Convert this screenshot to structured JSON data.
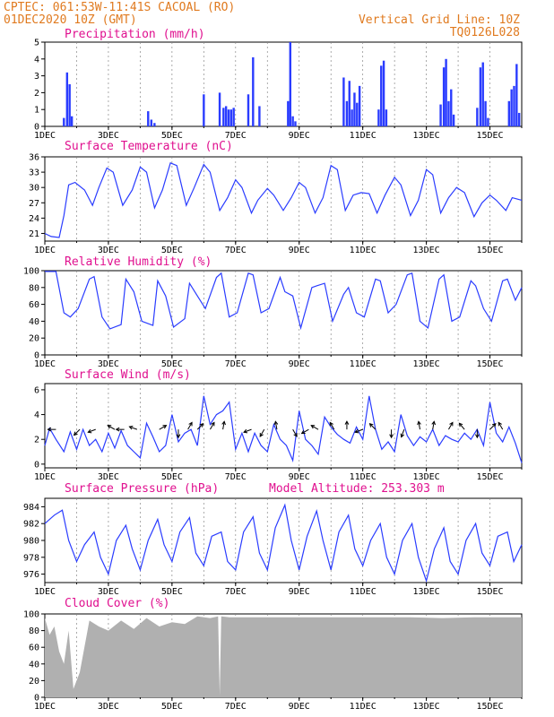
{
  "header": {
    "line1": "CPTEC:  061:53W-11:41S  CACOAL (RO)",
    "line2": "01DEC2020 10Z (GMT)",
    "grid_note": "Vertical Grid Line: 10Z",
    "model": "TQ0126L028"
  },
  "colors": {
    "header": "#e07a1f",
    "title": "#e0108f",
    "series": "#2a3cff",
    "cloud": "#b0b0b0"
  },
  "x_axis": {
    "day_range": [
      1,
      16
    ],
    "tick_days": [
      1,
      3,
      5,
      7,
      9,
      11,
      13,
      15
    ],
    "tick_labels": [
      "1DEC",
      "3DEC",
      "5DEC",
      "7DEC",
      "9DEC",
      "11DEC",
      "13DEC",
      "15DEC"
    ]
  },
  "chart_data": [
    {
      "id": "precip",
      "type": "bar",
      "title": "Precipitation (mm/h)",
      "ylim": [
        0,
        5
      ],
      "yticks": [
        0,
        1,
        2,
        3,
        4,
        5
      ],
      "x_day": [
        1.6,
        1.7,
        1.78,
        1.85,
        4.25,
        4.35,
        4.45,
        6.0,
        6.5,
        6.62,
        6.7,
        6.78,
        6.86,
        6.94,
        7.4,
        7.55,
        7.75,
        8.65,
        8.72,
        8.8,
        8.88,
        10.4,
        10.5,
        10.58,
        10.66,
        10.74,
        10.82,
        10.9,
        11.5,
        11.58,
        11.66,
        11.74,
        13.45,
        13.55,
        13.62,
        13.7,
        13.78,
        13.86,
        14.6,
        14.7,
        14.78,
        14.86,
        14.94,
        15.6,
        15.68,
        15.76,
        15.84,
        15.92
      ],
      "values": [
        0.5,
        3.2,
        2.5,
        0.6,
        0.9,
        0.4,
        0.2,
        1.9,
        2.0,
        1.1,
        1.2,
        1.0,
        1.0,
        1.1,
        1.9,
        4.1,
        1.2,
        1.5,
        5.0,
        0.6,
        0.3,
        2.9,
        1.5,
        2.7,
        1.0,
        2.0,
        1.4,
        2.4,
        1.0,
        3.6,
        3.9,
        1.0,
        1.3,
        3.5,
        4.0,
        1.5,
        2.2,
        0.7,
        1.1,
        3.5,
        3.8,
        1.5,
        0.5,
        1.5,
        2.2,
        2.4,
        3.7,
        0.8
      ]
    },
    {
      "id": "temp",
      "type": "line",
      "title": "Surface Temperature (nC)",
      "ylim": [
        19.5,
        36
      ],
      "yticks": [
        21,
        24,
        27,
        30,
        33,
        36
      ],
      "x_day": [
        1.0,
        1.2,
        1.45,
        1.6,
        1.75,
        1.95,
        2.25,
        2.5,
        2.7,
        2.95,
        3.15,
        3.45,
        3.75,
        4.0,
        4.2,
        4.45,
        4.7,
        4.95,
        5.15,
        5.45,
        5.7,
        6.0,
        6.2,
        6.5,
        6.75,
        7.0,
        7.2,
        7.5,
        7.7,
        8.0,
        8.2,
        8.5,
        8.75,
        9.0,
        9.2,
        9.5,
        9.75,
        10.0,
        10.2,
        10.45,
        10.7,
        10.95,
        11.2,
        11.45,
        11.7,
        12.0,
        12.2,
        12.5,
        12.75,
        13.0,
        13.2,
        13.45,
        13.7,
        13.95,
        14.2,
        14.5,
        14.75,
        15.0,
        15.2,
        15.5,
        15.7,
        16.0
      ],
      "values": [
        21.0,
        20.4,
        20.2,
        24.5,
        30.5,
        31.0,
        29.5,
        26.5,
        30.0,
        33.8,
        33.0,
        26.5,
        29.5,
        34.0,
        33.0,
        26.0,
        29.5,
        34.8,
        34.3,
        26.5,
        30.0,
        34.5,
        33.0,
        25.5,
        28.0,
        31.5,
        30.0,
        25.0,
        27.5,
        29.8,
        28.5,
        25.5,
        28.0,
        31.0,
        30.0,
        25.0,
        28.0,
        34.3,
        33.5,
        25.5,
        28.5,
        29.0,
        28.8,
        25.0,
        28.5,
        32.0,
        30.5,
        24.5,
        27.5,
        33.5,
        32.5,
        25.0,
        28.0,
        30.0,
        29.0,
        24.3,
        27.0,
        28.5,
        27.5,
        25.5,
        28.0,
        27.5
      ]
    },
    {
      "id": "rh",
      "type": "line",
      "title": "Relative Humidity (%)",
      "ylim": [
        0,
        100
      ],
      "yticks": [
        0,
        20,
        40,
        60,
        80,
        100
      ],
      "x_day": [
        1.0,
        1.35,
        1.6,
        1.8,
        2.05,
        2.4,
        2.55,
        2.8,
        3.05,
        3.4,
        3.55,
        3.8,
        4.05,
        4.4,
        4.55,
        4.8,
        5.05,
        5.4,
        5.55,
        5.8,
        6.05,
        6.4,
        6.55,
        6.8,
        7.05,
        7.4,
        7.55,
        7.8,
        8.05,
        8.4,
        8.55,
        8.8,
        9.05,
        9.4,
        9.55,
        9.8,
        10.05,
        10.4,
        10.55,
        10.8,
        11.05,
        11.4,
        11.55,
        11.8,
        12.05,
        12.4,
        12.55,
        12.8,
        13.05,
        13.4,
        13.55,
        13.8,
        14.05,
        14.4,
        14.55,
        14.8,
        15.05,
        15.4,
        15.55,
        15.8,
        16.0
      ],
      "values": [
        99.0,
        99.0,
        50.0,
        45.0,
        55.0,
        90.0,
        93.0,
        45.0,
        31.0,
        36.0,
        90.0,
        75.0,
        40.0,
        35.0,
        88.0,
        70.0,
        33.0,
        43.0,
        85.0,
        70.0,
        55.0,
        92.0,
        97.0,
        45.0,
        50.0,
        97.0,
        95.0,
        50.0,
        55.0,
        92.0,
        75.0,
        70.0,
        32.0,
        80.0,
        82.0,
        85.0,
        40.0,
        72.0,
        80.0,
        50.0,
        45.0,
        90.0,
        88.0,
        50.0,
        60.0,
        95.0,
        97.0,
        40.0,
        32.0,
        90.0,
        95.0,
        40.0,
        45.0,
        88.0,
        82.0,
        55.0,
        40.0,
        88.0,
        90.0,
        65.0,
        80.0
      ]
    },
    {
      "id": "wind",
      "type": "line",
      "title": "Surface Wind (m/s)",
      "ylim": [
        -0.3,
        6.5
      ],
      "yticks": [
        0,
        2,
        4,
        6
      ],
      "x_day": [
        1.0,
        1.15,
        1.35,
        1.6,
        1.8,
        2.0,
        2.2,
        2.4,
        2.6,
        2.8,
        3.0,
        3.2,
        3.4,
        3.6,
        3.8,
        4.0,
        4.2,
        4.4,
        4.6,
        4.8,
        5.0,
        5.2,
        5.4,
        5.6,
        5.8,
        6.0,
        6.2,
        6.4,
        6.6,
        6.8,
        7.0,
        7.2,
        7.4,
        7.6,
        7.8,
        8.0,
        8.2,
        8.4,
        8.6,
        8.8,
        9.0,
        9.2,
        9.4,
        9.6,
        9.8,
        10.0,
        10.2,
        10.4,
        10.6,
        10.8,
        11.0,
        11.2,
        11.4,
        11.6,
        11.8,
        12.0,
        12.2,
        12.4,
        12.6,
        12.8,
        13.0,
        13.2,
        13.4,
        13.6,
        13.8,
        14.0,
        14.2,
        14.4,
        14.6,
        14.8,
        15.0,
        15.2,
        15.4,
        15.6,
        15.8,
        16.0
      ],
      "values": [
        1.5,
        2.9,
        2.0,
        1.0,
        2.6,
        1.2,
        2.8,
        1.5,
        2.0,
        1.0,
        2.5,
        1.3,
        2.7,
        1.5,
        1.0,
        0.5,
        3.3,
        2.2,
        1.0,
        1.5,
        4.0,
        1.8,
        2.5,
        2.8,
        1.5,
        5.5,
        3.2,
        4.0,
        4.3,
        5.0,
        1.2,
        2.5,
        1.0,
        2.5,
        1.5,
        1.0,
        3.2,
        2.0,
        1.5,
        0.3,
        4.3,
        2.0,
        1.5,
        0.8,
        3.8,
        3.0,
        2.4,
        2.0,
        1.7,
        3.0,
        2.0,
        5.5,
        2.8,
        1.2,
        1.8,
        1.0,
        4.0,
        2.3,
        1.5,
        2.2,
        1.8,
        2.8,
        1.5,
        2.3,
        2.0,
        1.8,
        2.5,
        2.0,
        2.8,
        1.5,
        5.0,
        2.5,
        1.8,
        3.0,
        1.7,
        0.1
      ],
      "arrows_day": [
        1.35,
        2.1,
        2.6,
        3.2,
        3.5,
        3.9,
        4.6,
        5.2,
        5.5,
        5.8,
        6.2,
        6.6,
        7.5,
        7.9,
        8.3,
        8.8,
        9.3,
        9.6,
        10.1,
        10.5,
        11.0,
        11.4,
        11.9,
        12.3,
        12.8,
        13.2,
        13.7,
        14.2,
        14.6,
        15.0,
        15.4
      ],
      "arrows_dir_deg": [
        180,
        225,
        200,
        150,
        180,
        160,
        30,
        270,
        60,
        45,
        60,
        80,
        200,
        240,
        100,
        300,
        210,
        150,
        120,
        90,
        200,
        135,
        270,
        250,
        100,
        80,
        60,
        130,
        270,
        45,
        120
      ]
    },
    {
      "id": "pres",
      "type": "line",
      "title": "Surface Pressure (hPa)",
      "note": "Model Altitude: 253.303 m",
      "ylim": [
        975,
        985
      ],
      "yticks": [
        976,
        978,
        980,
        982,
        984
      ],
      "x_day": [
        1.0,
        1.3,
        1.55,
        1.75,
        2.0,
        2.25,
        2.55,
        2.75,
        3.0,
        3.25,
        3.55,
        3.75,
        4.0,
        4.25,
        4.55,
        4.75,
        5.0,
        5.25,
        5.55,
        5.75,
        6.0,
        6.25,
        6.55,
        6.75,
        7.0,
        7.25,
        7.55,
        7.75,
        8.0,
        8.25,
        8.55,
        8.75,
        9.0,
        9.25,
        9.55,
        9.75,
        10.0,
        10.25,
        10.55,
        10.75,
        11.0,
        11.25,
        11.55,
        11.75,
        12.0,
        12.25,
        12.55,
        12.75,
        13.0,
        13.25,
        13.55,
        13.75,
        14.0,
        14.25,
        14.55,
        14.75,
        15.0,
        15.25,
        15.55,
        15.75,
        16.0
      ],
      "values": [
        982.0,
        983.0,
        983.6,
        980.0,
        977.5,
        979.5,
        981.0,
        978.0,
        976.0,
        980.0,
        981.8,
        979.0,
        976.5,
        980.0,
        982.5,
        979.5,
        977.5,
        981.0,
        982.7,
        978.5,
        977.0,
        980.5,
        981.0,
        977.5,
        976.5,
        981.0,
        982.8,
        978.5,
        976.5,
        981.5,
        984.2,
        980.0,
        976.5,
        980.5,
        983.5,
        980.0,
        976.5,
        981.0,
        983.0,
        979.0,
        977.0,
        980.0,
        982.0,
        978.0,
        976.0,
        980.0,
        982.0,
        978.0,
        975.2,
        979.0,
        981.5,
        977.5,
        976.0,
        980.0,
        982.0,
        978.5,
        977.0,
        980.5,
        981.0,
        977.5,
        979.5
      ]
    },
    {
      "id": "cloud",
      "type": "area",
      "title": "Cloud Cover (%)",
      "ylim": [
        0,
        100
      ],
      "yticks": [
        0,
        20,
        40,
        60,
        80,
        100
      ],
      "x_day": [
        1.0,
        1.15,
        1.3,
        1.45,
        1.6,
        1.75,
        1.9,
        2.1,
        2.4,
        2.7,
        3.0,
        3.4,
        3.8,
        4.2,
        4.6,
        5.0,
        5.4,
        5.8,
        6.2,
        6.45,
        6.5,
        6.55,
        6.8,
        7.5,
        8.5,
        9.5,
        10.5,
        11.5,
        12.5,
        13.5,
        14.5,
        15.5,
        16.0
      ],
      "values": [
        95.0,
        75.0,
        85.0,
        55.0,
        40.0,
        80.0,
        10.0,
        30.0,
        92.0,
        85.0,
        80.0,
        92.0,
        82.0,
        95.0,
        85.0,
        90.0,
        88.0,
        97.0,
        95.0,
        97.0,
        2.0,
        97.0,
        96.0,
        96.0,
        96.0,
        96.0,
        96.0,
        96.0,
        96.0,
        95.0,
        96.0,
        96.0,
        96.0
      ]
    }
  ]
}
